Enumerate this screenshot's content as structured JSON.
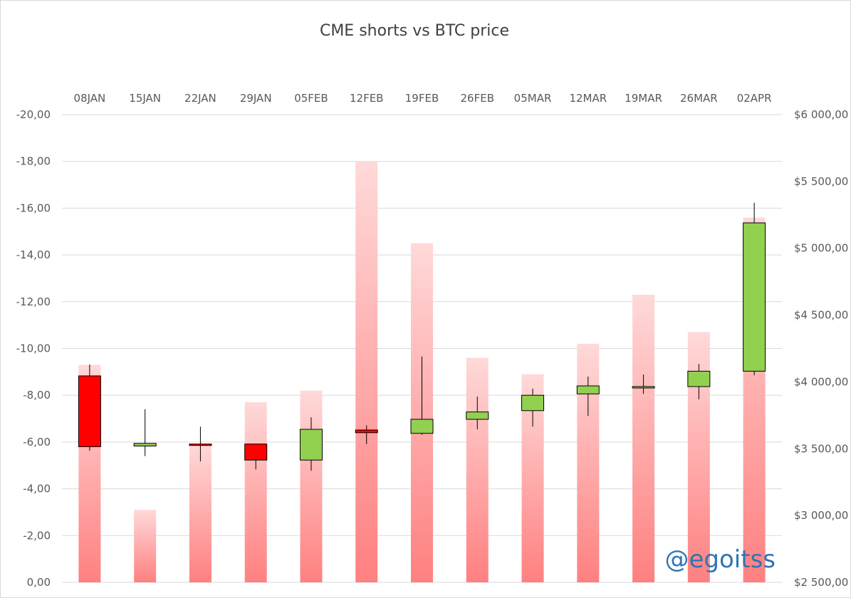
{
  "chart_data": {
    "type": "bar",
    "title": "CME shorts vs BTC price",
    "categories": [
      "08JAN",
      "15JAN",
      "22JAN",
      "29JAN",
      "05FEB",
      "12FEB",
      "19FEB",
      "26FEB",
      "05MAR",
      "12MAR",
      "19MAR",
      "26MAR",
      "02APR"
    ],
    "left_axis": {
      "ticks": [
        "-20,00",
        "-18,00",
        "-16,00",
        "-14,00",
        "-12,00",
        "-10,00",
        "-8,00",
        "-6,00",
        "-4,00",
        "-2,00",
        "0,00"
      ],
      "ylim": [
        0,
        -20
      ]
    },
    "right_axis": {
      "ticks": [
        "$6 000,00",
        "$5 500,00",
        "$5 000,00",
        "$4 500,00",
        "$4 000,00",
        "$3 500,00",
        "$3 000,00",
        "$2 500,00"
      ],
      "ylim": [
        2500,
        6000
      ]
    },
    "grid": true,
    "series": [
      {
        "kind": "bar",
        "axis": "left",
        "values": [
          -9.3,
          -3.1,
          -5.9,
          -7.7,
          -8.2,
          -18.0,
          -14.5,
          -9.6,
          -8.9,
          -10.2,
          -12.3,
          -10.7,
          -15.6
        ]
      },
      {
        "kind": "candlestick",
        "axis": "right",
        "ohlc": [
          {
            "open": 4045,
            "high": 4130,
            "low": 3485,
            "close": 3515
          },
          {
            "open": 3520,
            "high": 3795,
            "low": 3445,
            "close": 3540
          },
          {
            "open": 3535,
            "high": 3665,
            "low": 3405,
            "close": 3530
          },
          {
            "open": 3535,
            "high": 3535,
            "low": 3345,
            "close": 3415
          },
          {
            "open": 3415,
            "high": 3735,
            "low": 3335,
            "close": 3645
          },
          {
            "open": 3640,
            "high": 3675,
            "low": 3535,
            "close": 3620
          },
          {
            "open": 3615,
            "high": 4190,
            "low": 3605,
            "close": 3720
          },
          {
            "open": 3720,
            "high": 3890,
            "low": 3645,
            "close": 3775
          },
          {
            "open": 3785,
            "high": 3950,
            "low": 3665,
            "close": 3900
          },
          {
            "open": 3910,
            "high": 4040,
            "low": 3745,
            "close": 3970
          },
          {
            "open": 3960,
            "high": 4055,
            "low": 3910,
            "close": 3965
          },
          {
            "open": 3965,
            "high": 4135,
            "low": 3870,
            "close": 4080
          },
          {
            "open": 4080,
            "high": 5340,
            "low": 4050,
            "close": 5190
          }
        ],
        "up_color": "#92d050",
        "down_color": "#ff0000"
      }
    ],
    "bar_gradient": [
      "#ffd9d9",
      "#ff8080"
    ]
  },
  "watermark": "@egoitss"
}
